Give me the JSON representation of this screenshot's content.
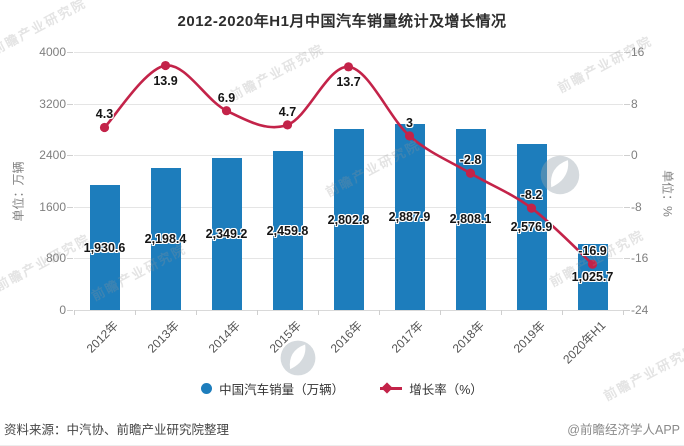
{
  "title": "2012-2020年H1月中国汽车销量统计及增长情况",
  "chart_data": {
    "type": "combo-bar-line",
    "categories": [
      "2012年",
      "2013年",
      "2014年",
      "2015年",
      "2016年",
      "2017年",
      "2018年",
      "2019年",
      "2020年H1"
    ],
    "series": [
      {
        "name": "中国汽车销量（万辆）",
        "type": "bar",
        "color": "#1d7dbc",
        "values": [
          1930.6,
          2198.4,
          2349.2,
          2459.8,
          2802.8,
          2887.9,
          2808.1,
          2576.9,
          1025.7
        ],
        "labels": [
          "1,930.6",
          "2,198.4",
          "2,349.2",
          "2,459.8",
          "2,802.8",
          "2,887.9",
          "2,808.1",
          "2,576.9",
          "1,025.7"
        ]
      },
      {
        "name": "增长率（%）",
        "type": "line",
        "color": "#c32349",
        "values": [
          4.3,
          13.9,
          6.9,
          4.7,
          13.7,
          3,
          -2.8,
          -8.2,
          -16.9
        ],
        "labels": [
          "4.3",
          "13.9",
          "6.9",
          "4.7",
          "13.7",
          "3",
          "-2.8",
          "-8.2",
          "-16.9"
        ]
      }
    ],
    "left_axis": {
      "label": "单位：万辆",
      "ticks": [
        4000,
        3200,
        2400,
        1600,
        800,
        0
      ],
      "min": 0,
      "max": 4000
    },
    "right_axis": {
      "label": "单位：%",
      "ticks": [
        16,
        8,
        0,
        -8,
        -16,
        -24
      ],
      "min": -24,
      "max": 16
    },
    "grid": true,
    "legend_position": "bottom"
  },
  "legend": {
    "items": [
      {
        "label": "中国汽车销量（万辆）",
        "marker": "circle",
        "color": "#1d7dbc"
      },
      {
        "label": "增长率（%）",
        "marker": "line-diamond",
        "color": "#c32349"
      }
    ]
  },
  "footer": {
    "source": "资料来源：中汽协、前瞻产业研究院整理",
    "credit": "@前瞻经济学人APP"
  },
  "watermark": {
    "text": "前瞻产业研究院"
  }
}
